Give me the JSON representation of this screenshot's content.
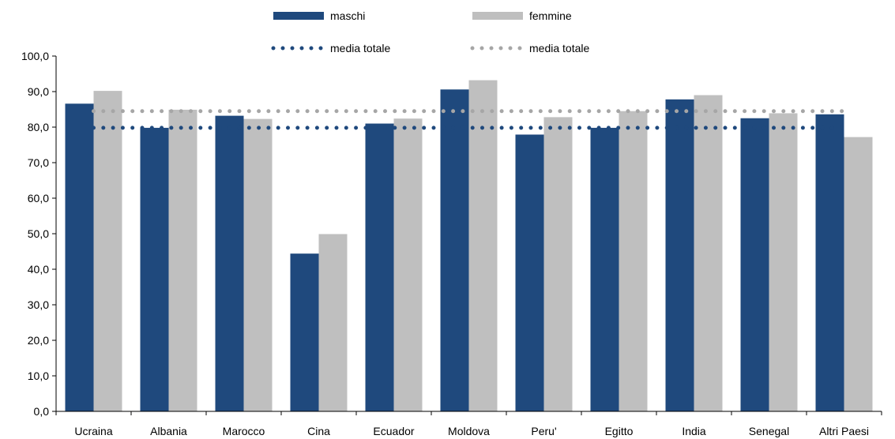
{
  "chart_data": {
    "type": "bar",
    "categories": [
      "Ucraina",
      "Albania",
      "Marocco",
      "Cina",
      "Ecuador",
      "Moldova",
      "Peru'",
      "Egitto",
      "India",
      "Senegal",
      "Altri Paesi"
    ],
    "series": [
      {
        "name": "maschi",
        "color": "#1f497d",
        "values": [
          86.6,
          79.8,
          83.2,
          44.4,
          81.0,
          90.6,
          77.9,
          79.8,
          87.8,
          82.5,
          83.6
        ]
      },
      {
        "name": "femmine",
        "color": "#bfbfbf",
        "values": [
          90.2,
          84.9,
          82.3,
          49.9,
          82.4,
          93.2,
          82.8,
          84.5,
          89.0,
          83.9,
          77.2
        ]
      }
    ],
    "reference_lines": [
      {
        "name": "media totale",
        "value": 79.8,
        "color": "#1f497d",
        "style": "dotted"
      },
      {
        "name": "media totale",
        "value": 84.5,
        "color": "#a6a6a6",
        "style": "dotted"
      }
    ],
    "ylim": [
      0,
      100
    ],
    "yticks": [
      "0,0",
      "10,0",
      "20,0",
      "30,0",
      "40,0",
      "50,0",
      "60,0",
      "70,0",
      "80,0",
      "90,0",
      "100,0"
    ],
    "xlabel": "",
    "ylabel": "",
    "title": "",
    "grid": false,
    "legend_position": "top"
  }
}
